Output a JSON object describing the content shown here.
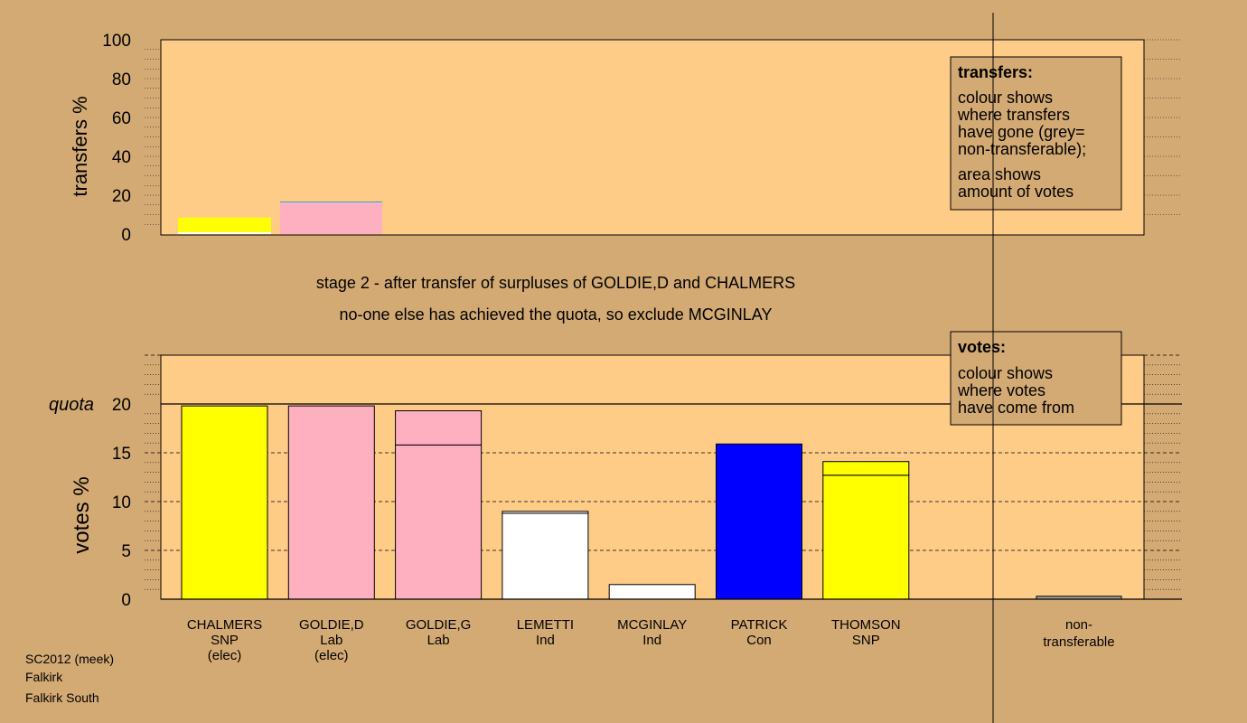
{
  "chart_data": [
    {
      "type": "bar",
      "ylabel": "transfers %",
      "ylim": [
        0,
        100
      ],
      "yticks": [
        0,
        20,
        40,
        60,
        80,
        100
      ],
      "bars": [
        {
          "category": "CHALMERS",
          "segments": [
            {
              "value": 1,
              "color": "#ffffff"
            },
            {
              "value": 7.5,
              "color": "#ffff00"
            }
          ]
        },
        {
          "category": "GOLDIE,D",
          "segments": [
            {
              "value": 15.8,
              "color": "#ffb0c0"
            },
            {
              "value": 0.5,
              "color": "#d0d0d0"
            },
            {
              "value": 0.4,
              "color": "#4a7fc4"
            }
          ]
        }
      ],
      "legend": {
        "title": "transfers:",
        "lines1": [
          "colour shows",
          "where transfers",
          "have gone (grey=",
          "non-transferable);"
        ],
        "lines2": [
          "area shows",
          "amount of votes"
        ]
      }
    },
    {
      "type": "bar",
      "ylabel": "votes %",
      "ylim": [
        0,
        25
      ],
      "yticks": [
        0,
        5,
        10,
        15,
        20
      ],
      "quota": 20,
      "quota_label": "quota",
      "categories": [
        {
          "name": "CHALMERS",
          "party": "SNP",
          "note": "(elec)"
        },
        {
          "name": "GOLDIE,D",
          "party": "Lab",
          "note": "(elec)"
        },
        {
          "name": "GOLDIE,G",
          "party": "Lab",
          "note": ""
        },
        {
          "name": "LEMETTI",
          "party": "Ind",
          "note": ""
        },
        {
          "name": "MCGINLAY",
          "party": "Ind",
          "note": ""
        },
        {
          "name": "PATRICK",
          "party": "Con",
          "note": ""
        },
        {
          "name": "THOMSON",
          "party": "SNP",
          "note": ""
        }
      ],
      "bars": [
        {
          "category": "CHALMERS",
          "segments": [
            {
              "value": 19.8,
              "color": "#ffff00"
            }
          ]
        },
        {
          "category": "GOLDIE,D",
          "segments": [
            {
              "value": 19.8,
              "color": "#ffb0c0"
            }
          ]
        },
        {
          "category": "GOLDIE,G",
          "segments": [
            {
              "value": 15.8,
              "color": "#ffb0c0"
            },
            {
              "value": 3.5,
              "color": "#ffb0c0"
            }
          ]
        },
        {
          "category": "LEMETTI",
          "segments": [
            {
              "value": 8.8,
              "color": "#ffffff"
            },
            {
              "value": 0.2,
              "color": "#ffffff"
            }
          ]
        },
        {
          "category": "MCGINLAY",
          "segments": [
            {
              "value": 1.5,
              "color": "#ffffff"
            }
          ]
        },
        {
          "category": "PATRICK",
          "segments": [
            {
              "value": 15.9,
              "color": "#0000ff"
            }
          ]
        },
        {
          "category": "THOMSON",
          "segments": [
            {
              "value": 12.7,
              "color": "#ffff00"
            },
            {
              "value": 1.4,
              "color": "#ffff00"
            }
          ]
        }
      ],
      "nontransferable": {
        "label1": "non-",
        "label2": "transferable",
        "value": 0.3
      },
      "legend": {
        "title": "votes:",
        "lines": [
          "colour shows",
          "where votes",
          "have come from"
        ]
      }
    }
  ],
  "stage_text": {
    "line1": "stage 2 - after transfer of surpluses of GOLDIE,D and CHALMERS",
    "line2": "no-one else has achieved the quota, so exclude MCGINLAY"
  },
  "footer": {
    "line1": "SC2012 (meek)",
    "line2": "Falkirk",
    "line3": "Falkirk South"
  },
  "colors": {
    "background": "#d4aa74",
    "plot_area": "#ffcc88",
    "legend_box": "#d4aa74"
  }
}
